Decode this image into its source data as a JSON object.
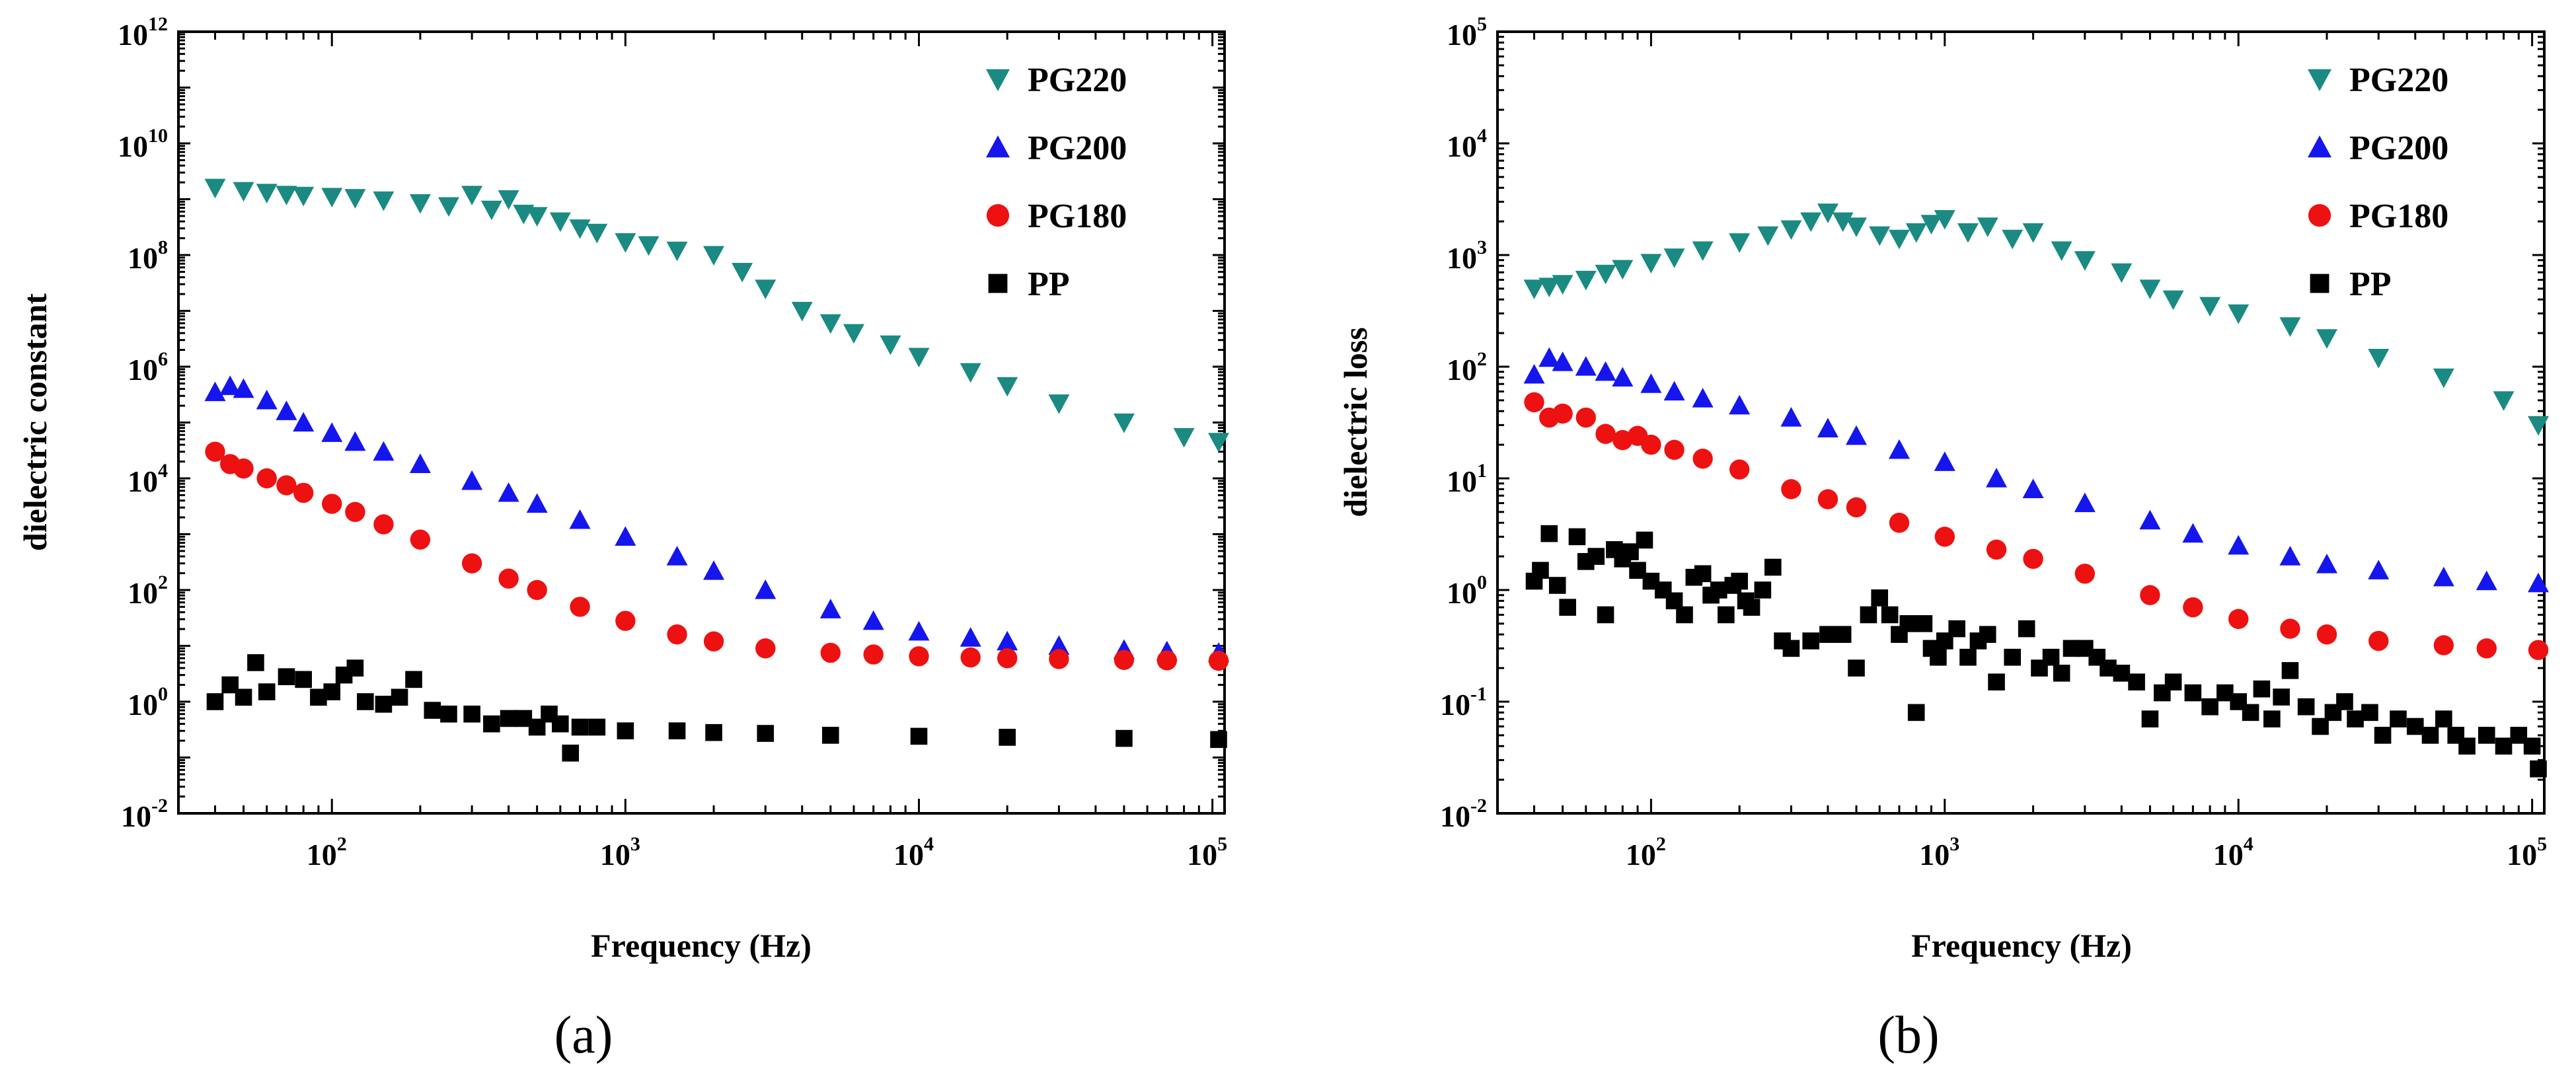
{
  "chart_data": [
    {
      "type": "scatter",
      "panel": "(a)",
      "xlabel": "Frequency (Hz)",
      "ylabel": "dielectric constant",
      "xscale": "log",
      "yscale": "log",
      "xlim": [
        30,
        110000
      ],
      "ylim": [
        0.01,
        1000000000000.0
      ],
      "x_ticks": [
        {
          "value": 100,
          "base": "10",
          "exp": "2"
        },
        {
          "value": 1000,
          "base": "10",
          "exp": "3"
        },
        {
          "value": 10000,
          "base": "10",
          "exp": "4"
        },
        {
          "value": 100000,
          "base": "10",
          "exp": "5"
        }
      ],
      "y_ticks": [
        {
          "value": 0.01,
          "base": "10",
          "exp": "-2"
        },
        {
          "value": 1,
          "base": "10",
          "exp": "0"
        },
        {
          "value": 100,
          "base": "10",
          "exp": "2"
        },
        {
          "value": 10000,
          "base": "10",
          "exp": "4"
        },
        {
          "value": 1000000,
          "base": "10",
          "exp": "6"
        },
        {
          "value": 100000000,
          "base": "10",
          "exp": "8"
        },
        {
          "value": 10000000000,
          "base": "10",
          "exp": "10"
        },
        {
          "value": 1000000000000,
          "base": "10",
          "exp": "12"
        }
      ],
      "legend_position": "top-right",
      "series": [
        {
          "name": "PG220",
          "color": "#1a8a82",
          "marker": "triangle-down",
          "x": [
            40,
            50,
            60,
            70,
            80,
            100,
            120,
            150,
            200,
            250,
            300,
            350,
            400,
            450,
            500,
            600,
            700,
            800,
            1000,
            1200,
            1500,
            2000,
            2500,
            3000,
            4000,
            5000,
            6000,
            8000,
            10000,
            15000,
            20000,
            30000,
            50000,
            80000,
            105000
          ],
          "y": [
            1600000000.0,
            1400000000.0,
            1300000000.0,
            1200000000.0,
            1150000000.0,
            1100000000.0,
            1050000000.0,
            950000000.0,
            850000000.0,
            750000000.0,
            1200000000.0,
            650000000.0,
            1000000000.0,
            550000000.0,
            500000000.0,
            400000000.0,
            300000000.0,
            250000000.0,
            170000000.0,
            150000000.0,
            120000000.0,
            100000000.0,
            50000000.0,
            25000000.0,
            10000000.0,
            6000000.0,
            4000000.0,
            2500000.0,
            1500000.0,
            800000.0,
            450000.0,
            220000.0,
            100000.0,
            55000.0,
            45000.0
          ]
        },
        {
          "name": "PG200",
          "color": "#1515ee",
          "marker": "triangle-up",
          "x": [
            40,
            45,
            50,
            60,
            70,
            80,
            100,
            120,
            150,
            200,
            300,
            400,
            500,
            700,
            1000,
            1500,
            2000,
            3000,
            5000,
            7000,
            10000,
            15000,
            20000,
            30000,
            50000,
            70000,
            105000
          ],
          "y": [
            350000.0,
            450000.0,
            400000.0,
            250000.0,
            160000.0,
            100000.0,
            65000.0,
            45000.0,
            30000.0,
            18000.0,
            9000.0,
            5500.0,
            3500.0,
            1800.0,
            900.0,
            400.0,
            220.0,
            100.0,
            45.0,
            28.0,
            18.0,
            14.0,
            12.0,
            10.0,
            8.5,
            8.0,
            7.5
          ]
        },
        {
          "name": "PG180",
          "color": "#ee1111",
          "marker": "circle",
          "x": [
            40,
            45,
            50,
            60,
            70,
            80,
            100,
            120,
            150,
            200,
            300,
            400,
            500,
            700,
            1000,
            1500,
            2000,
            3000,
            5000,
            7000,
            10000,
            15000,
            20000,
            30000,
            50000,
            70000,
            105000
          ],
          "y": [
            30000.0,
            18000.0,
            15000.0,
            10000.0,
            7500.0,
            5500.0,
            3500.0,
            2500.0,
            1500.0,
            800.0,
            300.0,
            160.0,
            100.0,
            50.0,
            28.0,
            16.0,
            12.0,
            9.0,
            7.5,
            7.0,
            6.5,
            6.2,
            6.0,
            5.8,
            5.6,
            5.5,
            5.4
          ]
        },
        {
          "name": "PP",
          "color": "#000000",
          "marker": "square",
          "x": [
            40,
            45,
            50,
            55,
            60,
            70,
            80,
            90,
            100,
            110,
            120,
            130,
            150,
            170,
            190,
            220,
            250,
            300,
            350,
            400,
            450,
            500,
            550,
            600,
            650,
            700,
            800,
            1000,
            1500,
            2000,
            3000,
            5000,
            10000,
            20000,
            50000,
            105000
          ],
          "y": [
            1.0,
            2.0,
            1.2,
            5.0,
            1.5,
            2.8,
            2.5,
            1.2,
            1.5,
            3.0,
            4.0,
            1.0,
            0.9,
            1.2,
            2.5,
            0.7,
            0.6,
            0.6,
            0.4,
            0.5,
            0.5,
            0.35,
            0.6,
            0.4,
            0.12,
            0.35,
            0.35,
            0.3,
            0.3,
            0.28,
            0.27,
            0.25,
            0.24,
            0.23,
            0.22,
            0.21
          ]
        }
      ]
    },
    {
      "type": "scatter",
      "panel": "(b)",
      "xlabel": "Frequency (Hz)",
      "ylabel": "dielectric loss",
      "xscale": "log",
      "yscale": "log",
      "xlim": [
        30,
        110000
      ],
      "ylim": [
        0.01,
        100000
      ],
      "x_ticks": [
        {
          "value": 100,
          "base": "10",
          "exp": "2"
        },
        {
          "value": 1000,
          "base": "10",
          "exp": "3"
        },
        {
          "value": 10000,
          "base": "10",
          "exp": "4"
        },
        {
          "value": 100000,
          "base": "10",
          "exp": "5"
        }
      ],
      "y_ticks": [
        {
          "value": 0.01,
          "base": "10",
          "exp": "-2"
        },
        {
          "value": 0.1,
          "base": "10",
          "exp": "-1"
        },
        {
          "value": 1,
          "base": "10",
          "exp": "0"
        },
        {
          "value": 10,
          "base": "10",
          "exp": "1"
        },
        {
          "value": 100,
          "base": "10",
          "exp": "2"
        },
        {
          "value": 1000,
          "base": "10",
          "exp": "3"
        },
        {
          "value": 10000,
          "base": "10",
          "exp": "4"
        },
        {
          "value": 100000,
          "base": "10",
          "exp": "5"
        }
      ],
      "legend_position": "top-right",
      "series": [
        {
          "name": "PG220",
          "color": "#1a8a82",
          "marker": "triangle-down",
          "x": [
            40,
            45,
            50,
            60,
            70,
            80,
            100,
            120,
            150,
            200,
            250,
            300,
            350,
            400,
            450,
            500,
            600,
            700,
            800,
            900,
            1000,
            1200,
            1400,
            1700,
            2000,
            2500,
            3000,
            4000,
            5000,
            6000,
            8000,
            10000,
            15000,
            20000,
            30000,
            50000,
            80000,
            105000
          ],
          "y": [
            500,
            520,
            550,
            600,
            680,
            750,
            850,
            950,
            1100,
            1300,
            1500,
            1700,
            2000,
            2400,
            2000,
            1800,
            1500,
            1400,
            1600,
            1900,
            2100,
            1600,
            1800,
            1400,
            1600,
            1100,
            900,
            700,
            500,
            400,
            350,
            300,
            230,
            180,
            120,
            80,
            50,
            30
          ]
        },
        {
          "name": "PG200",
          "color": "#1515ee",
          "marker": "triangle-up",
          "x": [
            40,
            45,
            50,
            60,
            70,
            80,
            100,
            120,
            150,
            200,
            300,
            400,
            500,
            700,
            1000,
            1500,
            2000,
            3000,
            5000,
            7000,
            10000,
            15000,
            20000,
            30000,
            50000,
            70000,
            105000
          ],
          "y": [
            85,
            120,
            110,
            100,
            90,
            80,
            70,
            60,
            52,
            45,
            35,
            28,
            24,
            18,
            14,
            10,
            8,
            6,
            4.2,
            3.2,
            2.5,
            2.0,
            1.7,
            1.5,
            1.3,
            1.2,
            1.15
          ]
        },
        {
          "name": "PG180",
          "color": "#ee1111",
          "marker": "circle",
          "x": [
            40,
            45,
            50,
            60,
            70,
            80,
            90,
            100,
            120,
            150,
            200,
            300,
            400,
            500,
            700,
            1000,
            1500,
            2000,
            3000,
            5000,
            7000,
            10000,
            15000,
            20000,
            30000,
            50000,
            70000,
            105000
          ],
          "y": [
            48,
            35,
            38,
            35,
            25,
            22,
            24,
            20,
            18,
            15,
            12,
            8,
            6.5,
            5.5,
            4.0,
            3.0,
            2.3,
            1.9,
            1.4,
            0.9,
            0.7,
            0.55,
            0.45,
            0.4,
            0.35,
            0.32,
            0.3,
            0.29
          ]
        },
        {
          "name": "PP",
          "color": "#000000",
          "marker": "square",
          "x": [
            40,
            42,
            45,
            48,
            52,
            56,
            60,
            65,
            70,
            75,
            80,
            85,
            90,
            95,
            100,
            110,
            120,
            130,
            140,
            150,
            160,
            170,
            180,
            190,
            200,
            210,
            220,
            240,
            260,
            280,
            300,
            350,
            400,
            450,
            500,
            550,
            600,
            650,
            700,
            750,
            800,
            850,
            900,
            950,
            1000,
            1100,
            1200,
            1300,
            1400,
            1500,
            1700,
            1900,
            2100,
            2300,
            2500,
            2700,
            3000,
            3300,
            3600,
            4000,
            4500,
            5000,
            5500,
            6000,
            7000,
            8000,
            9000,
            10000,
            11000,
            12000,
            13000,
            14000,
            15000,
            17000,
            19000,
            21000,
            23000,
            25000,
            28000,
            31000,
            35000,
            40000,
            45000,
            50000,
            55000,
            60000,
            70000,
            80000,
            90000,
            100000,
            105000
          ],
          "y": [
            1.2,
            1.5,
            3.2,
            1.1,
            0.7,
            3.0,
            1.8,
            2.0,
            0.6,
            2.3,
            1.9,
            2.2,
            1.5,
            2.8,
            1.2,
            1.0,
            0.8,
            0.6,
            1.3,
            1.4,
            0.9,
            1.0,
            0.6,
            1.1,
            1.2,
            0.8,
            0.7,
            1.0,
            1.6,
            0.35,
            0.3,
            0.35,
            0.4,
            0.4,
            0.2,
            0.6,
            0.85,
            0.6,
            0.4,
            0.5,
            0.08,
            0.5,
            0.3,
            0.25,
            0.35,
            0.45,
            0.25,
            0.35,
            0.4,
            0.15,
            0.25,
            0.45,
            0.2,
            0.25,
            0.18,
            0.3,
            0.3,
            0.25,
            0.2,
            0.18,
            0.15,
            0.07,
            0.12,
            0.15,
            0.12,
            0.09,
            0.12,
            0.1,
            0.08,
            0.13,
            0.07,
            0.11,
            0.19,
            0.09,
            0.06,
            0.08,
            0.1,
            0.07,
            0.08,
            0.05,
            0.07,
            0.06,
            0.05,
            0.07,
            0.05,
            0.04,
            0.05,
            0.04,
            0.05,
            0.04,
            0.025
          ]
        }
      ]
    }
  ]
}
